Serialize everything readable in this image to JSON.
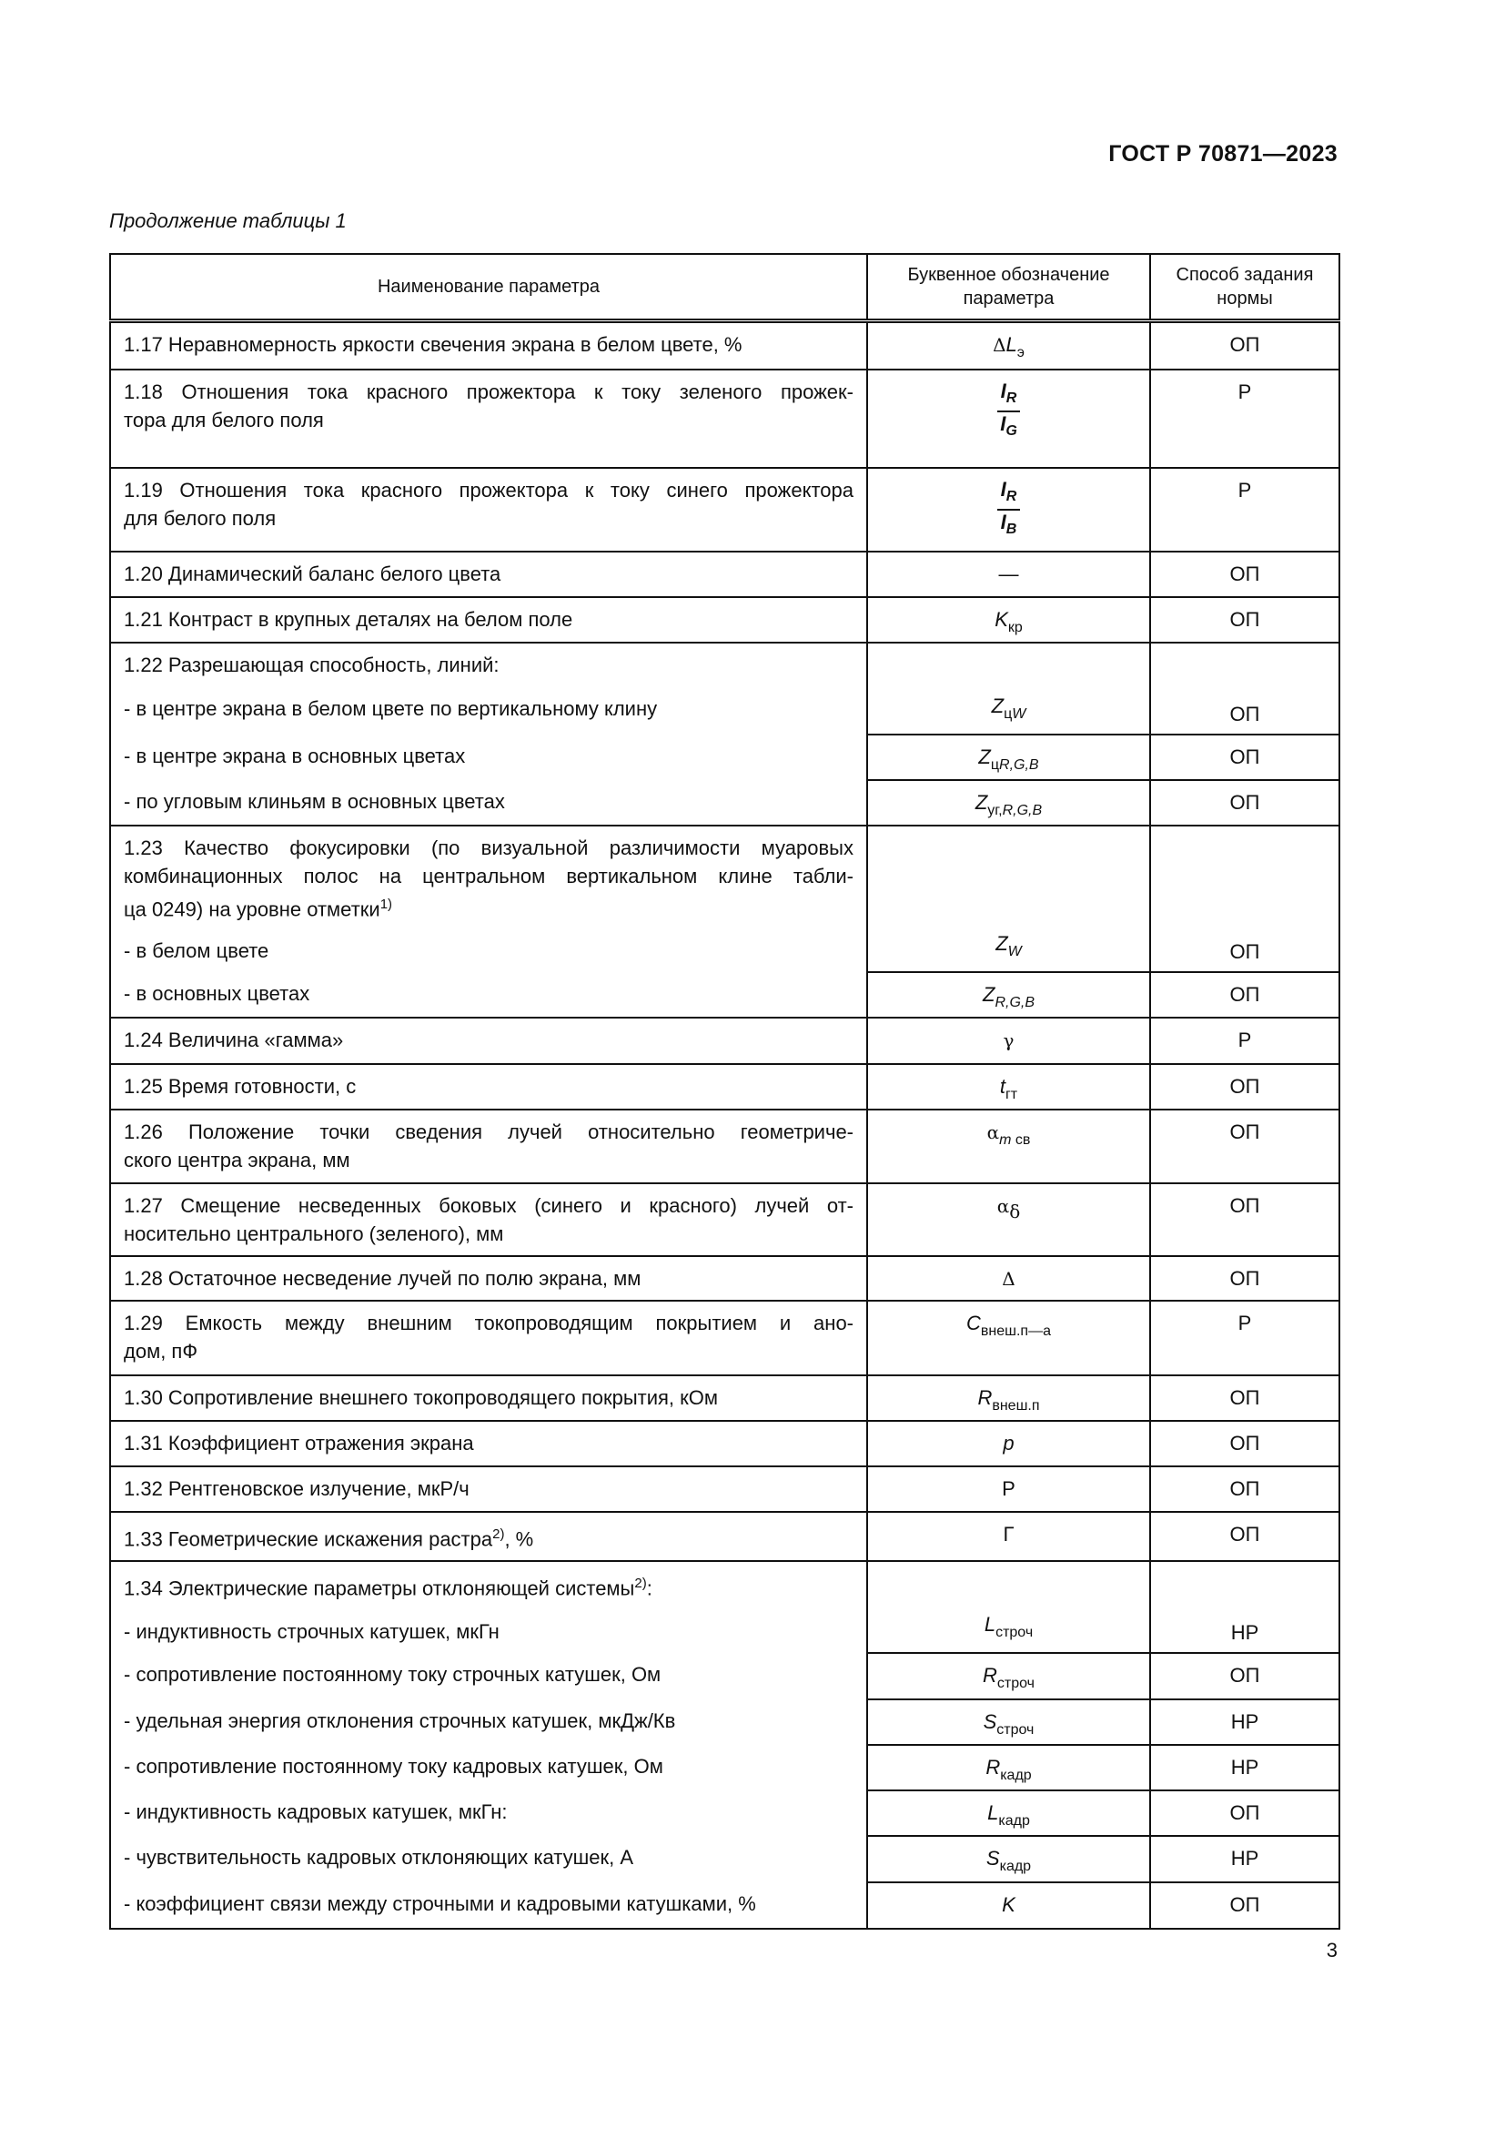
{
  "header": {
    "doc_code": "ГОСТ Р 70871—2023",
    "caption": "Продолжение таблицы 1",
    "page_number": "3"
  },
  "table": {
    "columns": [
      "Наименование параметра",
      "Буквенное обозначение параметра",
      "Способ задания нормы"
    ],
    "rows": [
      {
        "lines": [
          {
            "t": "1.17  Неравномерность яркости свечения экрана в белом цвете, %"
          }
        ],
        "sym": [
          {
            "t": "Δ",
            "g": 1
          },
          {
            "t": "L",
            "i": 1
          },
          {
            "t": "э",
            "s": 1
          }
        ],
        "norm": "ОП"
      },
      {
        "lines": [
          {
            "t": "1.18  Отношения тока красного прожектора к току зеленого прожек-",
            "wrap": 1
          },
          {
            "t": "тора для белого поля"
          }
        ],
        "frac": [
          [
            {
              "t": "I"
            },
            {
              "t": "R",
              "s": 1
            }
          ],
          [
            {
              "t": "I"
            },
            {
              "t": "G",
              "s": 1
            }
          ]
        ],
        "norm": "Р"
      },
      {
        "lines": [
          {
            "t": "1.19  Отношения тока красного прожектора к току синего прожектора",
            "wrap": 1
          },
          {
            "t": "для белого поля"
          }
        ],
        "frac": [
          [
            {
              "t": "I"
            },
            {
              "t": "R",
              "s": 1
            }
          ],
          [
            {
              "t": "I"
            },
            {
              "t": "B",
              "s": 1
            }
          ]
        ],
        "norm": "Р"
      },
      {
        "lines": [
          {
            "t": "1.20  Динамический баланс белого цвета"
          }
        ],
        "sym": [
          {
            "t": "—"
          }
        ],
        "norm": "ОП"
      },
      {
        "lines": [
          {
            "t": "1.21  Контраст в крупных деталях на белом поле"
          }
        ],
        "sym": [
          {
            "t": "K",
            "i": 1
          },
          {
            "t": "кр",
            "s": 1
          }
        ],
        "norm": "ОП"
      },
      {
        "group": 1,
        "lines": [
          {
            "t": "1.22  Разрешающая способность, линий:"
          },
          {
            "t": "- в центре экрана в белом цвете по вертикальному клину",
            "gap": 1
          }
        ],
        "sym": [
          {
            "t": "Z",
            "i": 1
          },
          {
            "t": "ц",
            "s": 1
          },
          {
            "t": "W",
            "s": 1,
            "i": 1
          }
        ],
        "norm": "ОП"
      },
      {
        "cont": 1,
        "lines": [
          {
            "t": "- в центре экрана в основных цветах"
          }
        ],
        "sym": [
          {
            "t": "Z",
            "i": 1
          },
          {
            "t": "ц",
            "s": 1
          },
          {
            "t": "R,G,B",
            "s": 1,
            "i": 1
          }
        ],
        "norm": "ОП"
      },
      {
        "cont": 1,
        "lines": [
          {
            "t": "- по угловым клиньям в основных цветах"
          }
        ],
        "sym": [
          {
            "t": "Z",
            "i": 1
          },
          {
            "t": "уг,",
            "s": 1
          },
          {
            "t": "R,G,B",
            "s": 1,
            "i": 1
          }
        ],
        "norm": "ОП"
      },
      {
        "group": 1,
        "lines": [
          {
            "t": "1.23  Качество фокусировки (по визуальной различимости муаровых",
            "wrap": 1
          },
          {
            "t": "комбинационных полос на центральном вертикальном клине табли-",
            "wrap": 1
          },
          {
            "t": "ца 0249) на уровне отметки",
            "sup": "1)"
          },
          {
            "t": "- в белом цвете",
            "gap": 1
          }
        ],
        "sym": [
          {
            "t": "Z",
            "i": 1
          },
          {
            "t": "W",
            "s": 1,
            "i": 1
          }
        ],
        "norm": "ОП"
      },
      {
        "cont": 1,
        "lines": [
          {
            "t": "- в основных цветах"
          }
        ],
        "sym": [
          {
            "t": "Z",
            "i": 1
          },
          {
            "t": "R,G,B",
            "s": 1,
            "i": 1
          }
        ],
        "norm": "ОП"
      },
      {
        "lines": [
          {
            "t": "1.24  Величина «гамма»"
          }
        ],
        "sym": [
          {
            "t": "γ",
            "g": 1
          }
        ],
        "norm": "Р"
      },
      {
        "lines": [
          {
            "t": "1.25  Время готовности, с"
          }
        ],
        "sym": [
          {
            "t": "t",
            "i": 1
          },
          {
            "t": "гт",
            "s": 1
          }
        ],
        "norm": "ОП"
      },
      {
        "lines": [
          {
            "t": "1.26  Положение точки сведения лучей относительно геометриче-",
            "wrap": 1
          },
          {
            "t": "ского центра экрана, мм"
          }
        ],
        "sym": [
          {
            "t": "α",
            "g": 1
          },
          {
            "t": "m",
            "s": 1,
            "i": 1
          },
          {
            "t": " св",
            "s": 1
          }
        ],
        "norm": "ОП"
      },
      {
        "lines": [
          {
            "t": "1.27  Смещение несведенных боковых (синего и красного) лучей от-",
            "wrap": 1
          },
          {
            "t": "носительно центрального (зеленого), мм"
          }
        ],
        "sym": [
          {
            "t": "α",
            "g": 1
          },
          {
            "t": "δ",
            "s": 1,
            "g": 1
          }
        ],
        "norm": "ОП"
      },
      {
        "lines": [
          {
            "t": "1.28  Остаточное несведение лучей по полю экрана, мм"
          }
        ],
        "sym": [
          {
            "t": "Δ",
            "g": 1
          }
        ],
        "norm": "ОП"
      },
      {
        "lines": [
          {
            "t": "1.29  Емкость между внешним токопроводящим покрытием и ано-",
            "wrap": 1
          },
          {
            "t": "дом, пФ"
          }
        ],
        "sym": [
          {
            "t": "C",
            "i": 1
          },
          {
            "t": "внеш.п—а",
            "s": 1
          }
        ],
        "norm": "Р"
      },
      {
        "lines": [
          {
            "t": "1.30  Сопротивление внешнего токопроводящего покрытия, кОм"
          }
        ],
        "sym": [
          {
            "t": "R",
            "i": 1
          },
          {
            "t": "внеш.п",
            "s": 1
          }
        ],
        "norm": "ОП"
      },
      {
        "lines": [
          {
            "t": "1.31  Коэффициент отражения экрана"
          }
        ],
        "sym": [
          {
            "t": "p",
            "i": 1
          }
        ],
        "norm": "ОП"
      },
      {
        "lines": [
          {
            "t": "1.32  Рентгеновское излучение, мкР/ч"
          }
        ],
        "sym": [
          {
            "t": "Р"
          }
        ],
        "norm": "ОП"
      },
      {
        "lines": [
          {
            "t": "1.33  Геометрические искажения растра",
            "sup": "2)",
            "after": ", %"
          }
        ],
        "sym": [
          {
            "t": "Г"
          }
        ],
        "norm": "ОП"
      },
      {
        "group": 1,
        "lines": [
          {
            "t": "1.34  Электрические параметры отклоняющей системы",
            "sup": "2)",
            "after": ":"
          },
          {
            "t": "- индуктивность строчных катушек, мкГн",
            "gap": 1
          }
        ],
        "sym": [
          {
            "t": "L",
            "i": 1
          },
          {
            "t": "строч",
            "s": 1
          }
        ],
        "norm": "НР"
      },
      {
        "cont": 1,
        "lines": [
          {
            "t": "- сопротивление постоянному току строчных катушек, Ом"
          }
        ],
        "sym": [
          {
            "t": "R",
            "i": 1
          },
          {
            "t": "строч",
            "s": 1
          }
        ],
        "norm": "ОП"
      },
      {
        "cont": 1,
        "lines": [
          {
            "t": "- удельная энергия отклонения строчных катушек, мкДж/Кв"
          }
        ],
        "sym": [
          {
            "t": "S",
            "i": 1
          },
          {
            "t": "строч",
            "s": 1
          }
        ],
        "norm": "НР"
      },
      {
        "cont": 1,
        "lines": [
          {
            "t": "- сопротивление постоянному току кадровых катушек, Ом"
          }
        ],
        "sym": [
          {
            "t": "R",
            "i": 1
          },
          {
            "t": "кадр",
            "s": 1
          }
        ],
        "norm": "НР"
      },
      {
        "cont": 1,
        "lines": [
          {
            "t": "- индуктивность кадровых катушек, мкГн:"
          }
        ],
        "sym": [
          {
            "t": "L",
            "i": 1
          },
          {
            "t": "кадр",
            "s": 1
          }
        ],
        "norm": "ОП"
      },
      {
        "cont": 1,
        "lines": [
          {
            "t": "- чувствительность кадровых отклоняющих катушек, А"
          }
        ],
        "sym": [
          {
            "t": "S",
            "i": 1
          },
          {
            "t": "кадр",
            "s": 1
          }
        ],
        "norm": "НР"
      },
      {
        "cont": 1,
        "lines": [
          {
            "t": "- коэффициент связи между строчными и кадровыми катушками, %"
          }
        ],
        "sym": [
          {
            "t": "K",
            "i": 1
          }
        ],
        "norm": "ОП"
      }
    ]
  }
}
